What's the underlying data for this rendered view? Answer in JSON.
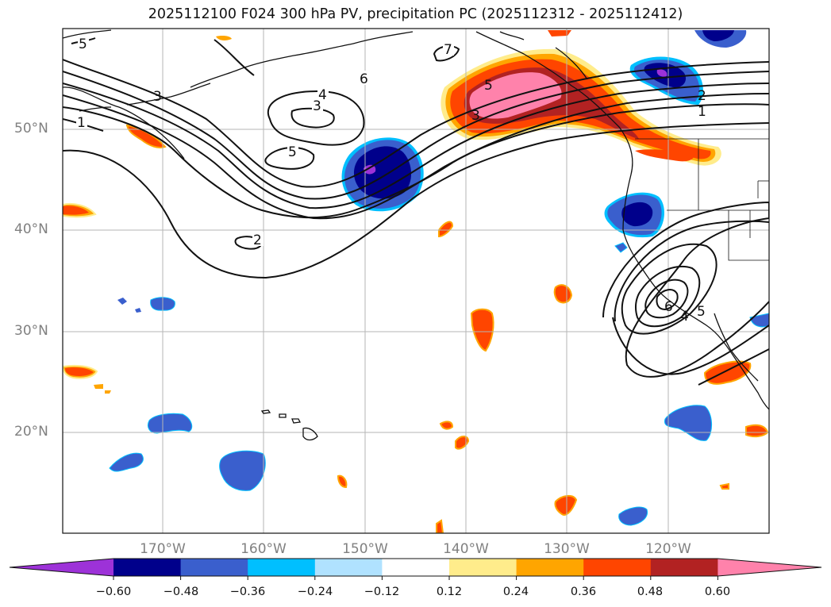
{
  "title": "2025112100 F024 300 hPa PV, precipitation PC (2025112312 - 2025112412)",
  "lat_labels": [
    "50°N",
    "40°N",
    "30°N",
    "20°N"
  ],
  "lon_labels": [
    "170°W",
    "160°W",
    "150°W",
    "140°W",
    "130°W",
    "120°W"
  ],
  "contour_labels": [
    "5",
    "7",
    "6",
    "4",
    "3",
    "1",
    "5",
    "3",
    "5",
    "2",
    "3",
    "2",
    "1",
    "6",
    "4",
    "5"
  ],
  "colorbar": {
    "ticks": [
      "−0.60",
      "−0.48",
      "−0.36",
      "−0.24",
      "−0.12",
      "0.12",
      "0.24",
      "0.36",
      "0.48",
      "0.60"
    ],
    "colors": [
      "#9d32d8",
      "#00008b",
      "#3a5fcd",
      "#00bfff",
      "#b0e2ff",
      "#ffffff",
      "#ffec8b",
      "#ffa500",
      "#ff4500",
      "#b22222",
      "#ff82ab"
    ]
  }
}
